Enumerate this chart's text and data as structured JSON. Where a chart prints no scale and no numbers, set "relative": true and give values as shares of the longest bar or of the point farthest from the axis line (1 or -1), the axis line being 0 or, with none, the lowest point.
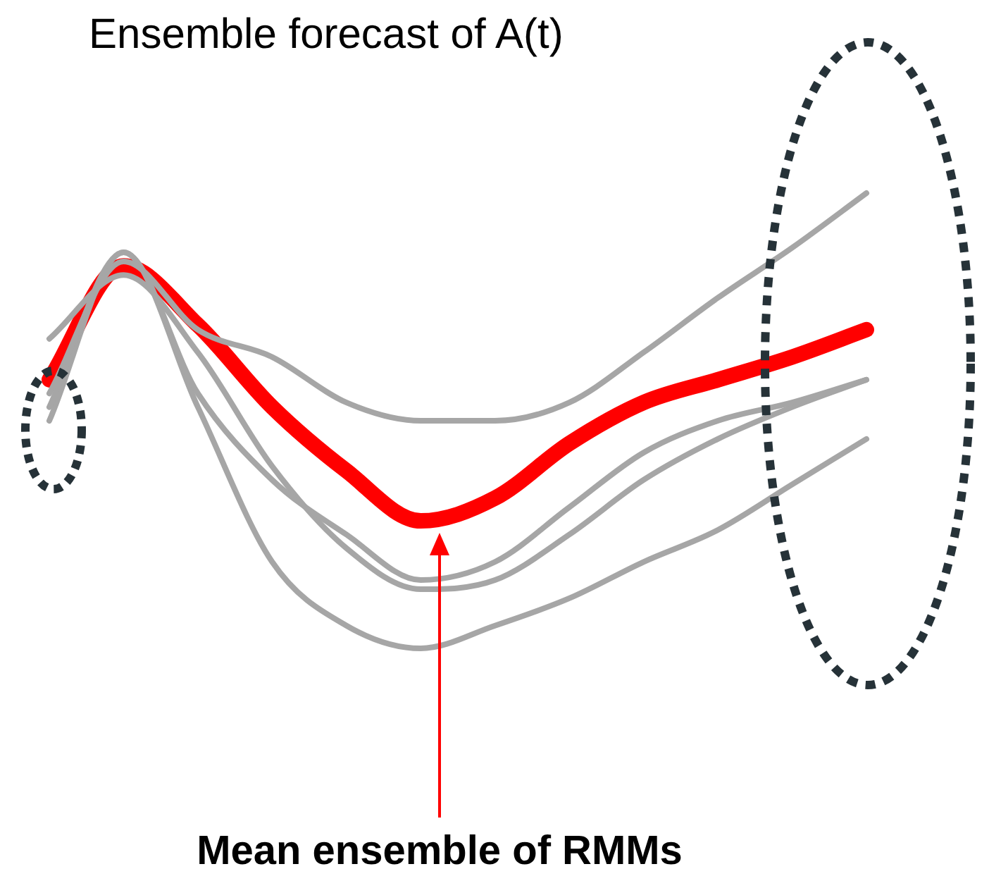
{
  "chart_data": {
    "type": "line",
    "title": "Ensemble forecast of A(t)",
    "annotations": [
      "Mean ensemble of RMMs"
    ],
    "relative": true,
    "marker": "none",
    "categories": [
      null,
      null,
      null,
      null,
      null,
      null,
      null,
      null,
      null,
      null,
      null,
      null
    ],
    "series": [
      {
        "color": "#a6a6a6",
        "values": [
          0.56,
          0.85,
          0.7,
          0.64,
          0.54,
          0.5,
          0.5,
          0.54,
          0.65,
          0.77,
          0.88,
          1
        ]
      },
      {
        "color": "#a6a6a6",
        "values": [
          0.53,
          0.87,
          0.56,
          0.37,
          0.25,
          0.15,
          0.19,
          0.31,
          0.43,
          0.5,
          0.54,
          0.59
        ]
      },
      {
        "color": "#a6a6a6",
        "values": [
          0.5,
          0.87,
          0.53,
          0.19,
          0.05,
          0,
          0.05,
          0.11,
          0.19,
          0.26,
          0.36,
          0.46
        ]
      },
      {
        "color": "#a6a6a6",
        "values": [
          0.68,
          0.82,
          0.65,
          0.4,
          0.22,
          0.13,
          0.15,
          0.25,
          0.37,
          0.46,
          0.53,
          0.59
        ]
      },
      {
        "color": "#ff0000",
        "values": [
          0.59,
          0.84,
          0.71,
          0.53,
          0.39,
          0.28,
          0.33,
          0.45,
          0.54,
          0.59,
          0.64,
          0.7
        ]
      }
    ]
  }
}
